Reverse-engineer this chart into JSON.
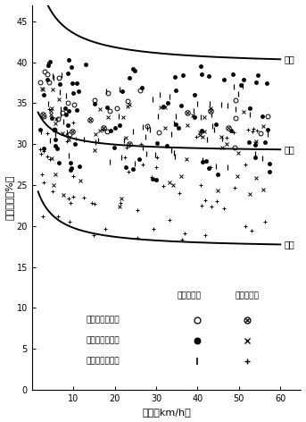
{
  "title": "",
  "xlabel": "速度（km/h）",
  "ylabel": "粘着係数（%）",
  "xlim": [
    0,
    65
  ],
  "ylim": [
    0,
    47
  ],
  "xticks": [
    10,
    20,
    30,
    40,
    50,
    60
  ],
  "yticks": [
    0,
    5,
    10,
    15,
    20,
    25,
    30,
    35,
    40,
    45
  ],
  "curve_max_label": "最大",
  "curve_mean_label": "平均",
  "curve_min_label": "最小",
  "legend_header_dry": "乾燥レール",
  "legend_header_wet": "湿潤レール",
  "legend_row1": "完　全　粘　着",
  "legend_row2": "微　小　空　転",
  "legend_row3": "空転直前の粘着",
  "background_color": "#ffffff",
  "curve_color": "#000000"
}
